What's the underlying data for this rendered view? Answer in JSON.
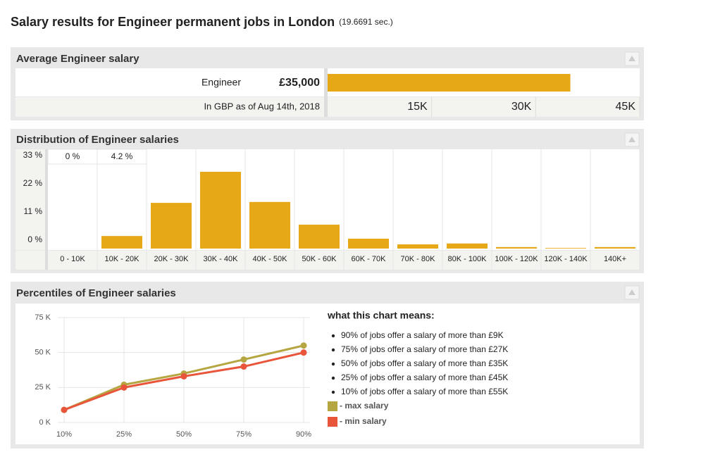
{
  "header": {
    "title": "Salary results for Engineer permanent jobs in London",
    "timing": "(19.6691 sec.)"
  },
  "chart_data": [
    {
      "type": "hbar",
      "title": "Average Engineer salary",
      "categories": [
        "Engineer"
      ],
      "values": [
        35000
      ],
      "value_labels": [
        "£35,000"
      ],
      "note": "In GBP as of Aug 14th, 2018",
      "color": "#e6a817",
      "xlim": [
        0,
        45000
      ],
      "xticks": [
        {
          "value": 15000,
          "label": "15K"
        },
        {
          "value": 30000,
          "label": "30K"
        },
        {
          "value": 45000,
          "label": "45K"
        }
      ]
    },
    {
      "type": "bar",
      "title": "Distribution of Engineer salaries",
      "categories": [
        "0 - 10K",
        "10K - 20K",
        "20K - 30K",
        "30K - 40K",
        "40K - 50K",
        "50K - 60K",
        "60K - 70K",
        "70K - 80K",
        "80K - 100K",
        "100K - 120K",
        "120K - 140K",
        "140K+"
      ],
      "values": [
        0,
        4.2,
        15.3,
        25.7,
        15.6,
        8.0,
        3.3,
        1.4,
        1.7,
        0.5,
        0.2,
        0.5
      ],
      "value_labels": [
        "0 %",
        "4.2 %",
        null,
        null,
        null,
        null,
        null,
        null,
        null,
        null,
        null,
        null
      ],
      "color": "#e6a817",
      "ylim": [
        0,
        33
      ],
      "yticks": [
        {
          "value": 33,
          "label": "33 %"
        },
        {
          "value": 22,
          "label": "22 %"
        },
        {
          "value": 11,
          "label": "11 %"
        },
        {
          "value": 0,
          "label": "0 %"
        }
      ]
    },
    {
      "type": "line",
      "title": "Percentiles of Engineer salaries",
      "categories": [
        "10%",
        "25%",
        "50%",
        "75%",
        "90%"
      ],
      "series": [
        {
          "name": "- max salary",
          "color": "#b5a642",
          "values": [
            9000,
            27000,
            35000,
            45000,
            55000
          ]
        },
        {
          "name": "- min salary",
          "color": "#e8553a",
          "values": [
            9000,
            25000,
            33000,
            40000,
            50000
          ]
        }
      ],
      "ylim": [
        0,
        75000
      ],
      "yticks": [
        {
          "value": 0,
          "label": "0 K"
        },
        {
          "value": 25000,
          "label": "25 K"
        },
        {
          "value": 50000,
          "label": "50 K"
        },
        {
          "value": 75000,
          "label": "75 K"
        }
      ],
      "grid": true,
      "legend_title": "what this chart means:",
      "notes": [
        "90% of jobs offer a salary of more than £9K",
        "75% of jobs offer a salary of more than £27K",
        "50% of jobs offer a salary of more than £35K",
        "25% of jobs offer a salary of more than £45K",
        "10% of jobs offer a salary of more than £55K"
      ]
    }
  ]
}
